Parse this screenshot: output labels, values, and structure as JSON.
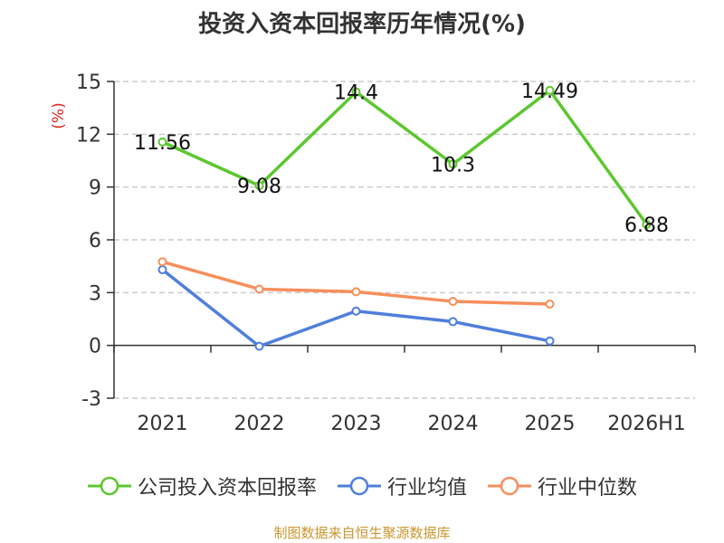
{
  "page": {
    "title": "投资入资本回报率历年情况(%)",
    "source": "制图数据来自恒生聚源数据库"
  },
  "chart_data": {
    "type": "line",
    "title": "投资入资本回报率历年情况(%)",
    "ylabel": "(%)",
    "ylim": [
      -3,
      15
    ],
    "yticks": [
      -3,
      0,
      3,
      6,
      9,
      12,
      15
    ],
    "categories": [
      "2021",
      "2022",
      "2023",
      "2024",
      "2025",
      "2026H1"
    ],
    "grid": true,
    "legend": "bottom",
    "series": [
      {
        "name": "公司投入资本回报率",
        "color": "#5cc72f",
        "values": [
          11.56,
          9.08,
          14.4,
          10.3,
          14.49,
          6.88
        ],
        "labels": [
          "11.56",
          "9.08",
          "14.4",
          "10.3",
          "14.49",
          "6.88"
        ]
      },
      {
        "name": "行业均值",
        "color": "#4f7fdb",
        "values": [
          4.3,
          -0.05,
          1.95,
          1.35,
          0.25,
          null
        ]
      },
      {
        "name": "行业中位数",
        "color": "#f68f5c",
        "values": [
          4.75,
          3.2,
          3.05,
          2.5,
          2.35,
          null
        ]
      }
    ]
  }
}
